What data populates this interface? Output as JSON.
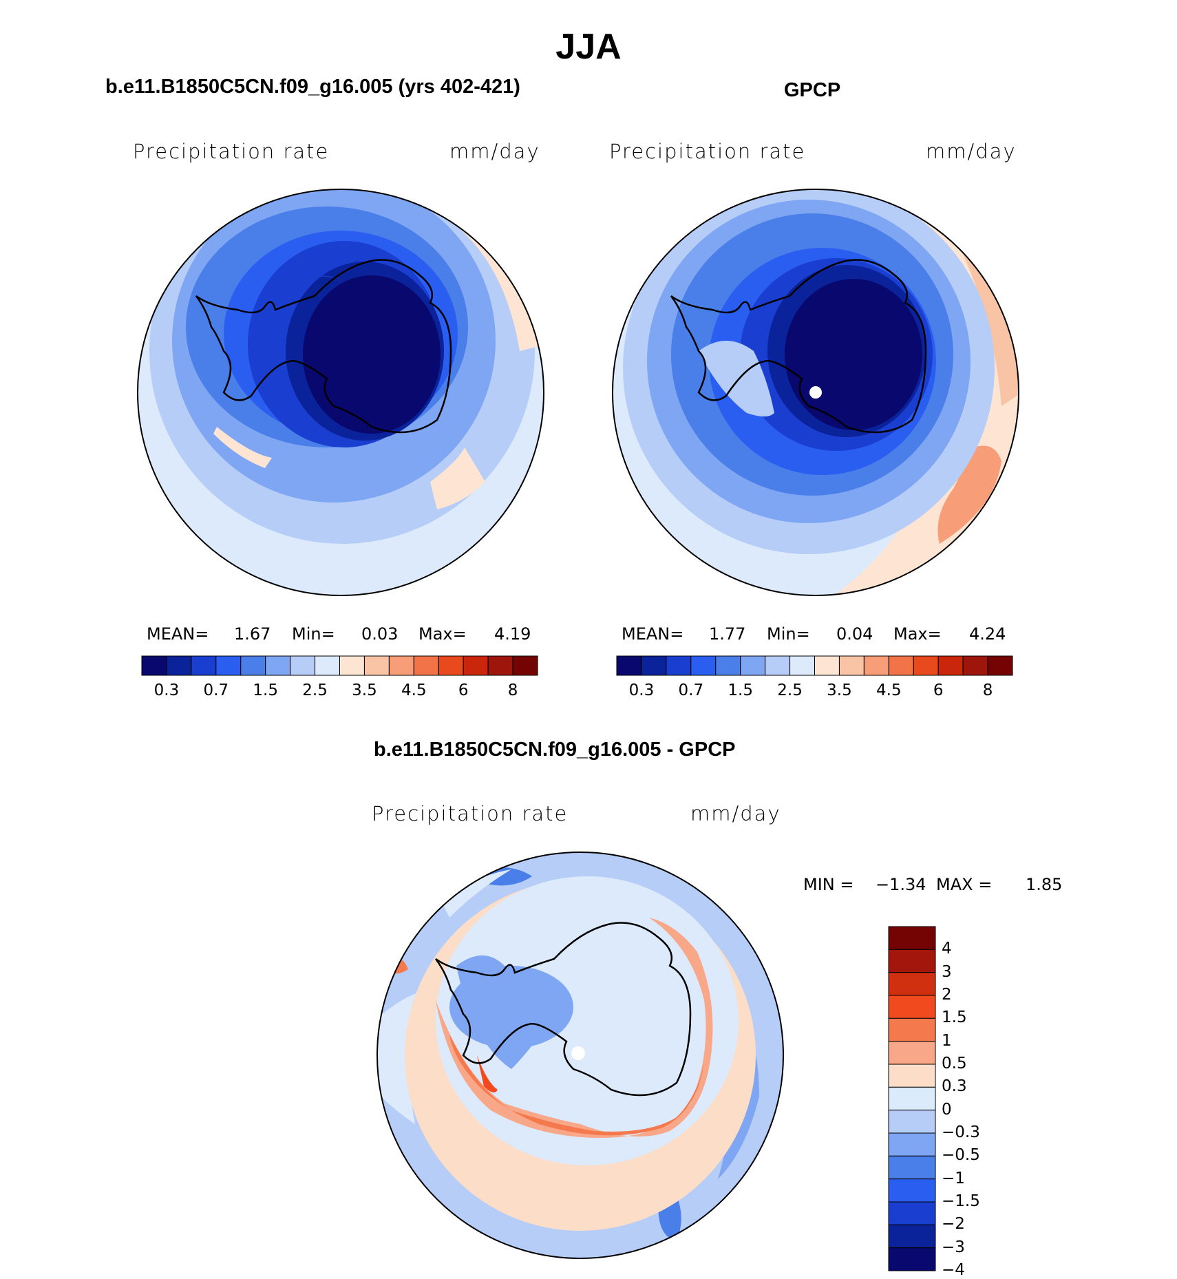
{
  "title": "JJA",
  "panels": [
    {
      "title": "b.e11.B1850C5CN.f09_g16.005 (yrs 402-421)",
      "label_left": "Precipitation rate",
      "label_right": "mm/day",
      "stats": {
        "mean_label": "MEAN=",
        "mean": "1.67",
        "min_label": "Min=",
        "min": "0.03",
        "max_label": "Max=",
        "max": "4.19"
      }
    },
    {
      "title": "GPCP",
      "label_left": "Precipitation rate",
      "label_right": "mm/day",
      "stats": {
        "mean_label": "MEAN=",
        "mean": "1.77",
        "min_label": "Min=",
        "min": "0.04",
        "max_label": "Max=",
        "max": "4.24"
      }
    },
    {
      "title": "b.e11.B1850C5CN.f09_g16.005 - GPCP",
      "label_left": "Precipitation rate",
      "label_right": "mm/day",
      "stats": {
        "min_label": "MIN =",
        "min": "−1.34",
        "max_label": "MAX =",
        "max": "1.85"
      }
    }
  ],
  "colorbar_abs": {
    "colors": [
      "#08086e",
      "#0b239a",
      "#1a3fd0",
      "#2a5ef0",
      "#4a7ee8",
      "#7ea6f2",
      "#b6cdf7",
      "#dceafb",
      "#fde4d3",
      "#f9c3a6",
      "#f79e78",
      "#f27347",
      "#e84a1d",
      "#c9260c",
      "#9e150b",
      "#740404"
    ],
    "labels": [
      "0.3",
      "0.7",
      "1.5",
      "2.5",
      "3.5",
      "4.5",
      "6",
      "8"
    ]
  },
  "colorbar_diff": {
    "colors": [
      "#740404",
      "#a3160b",
      "#d0300f",
      "#f24a1f",
      "#f47a4e",
      "#f8a888",
      "#fbddc8",
      "#dcebfb",
      "#b6cdf7",
      "#7ea6f2",
      "#4a7ee8",
      "#2a5ef0",
      "#1a3fd0",
      "#0b239a",
      "#08086e"
    ],
    "labels": [
      "4",
      "3",
      "2",
      "1.5",
      "1",
      "0.5",
      "0.3",
      "0",
      "−0.3",
      "−0.5",
      "−1",
      "−1.5",
      "−2",
      "−3",
      "−4"
    ]
  }
}
